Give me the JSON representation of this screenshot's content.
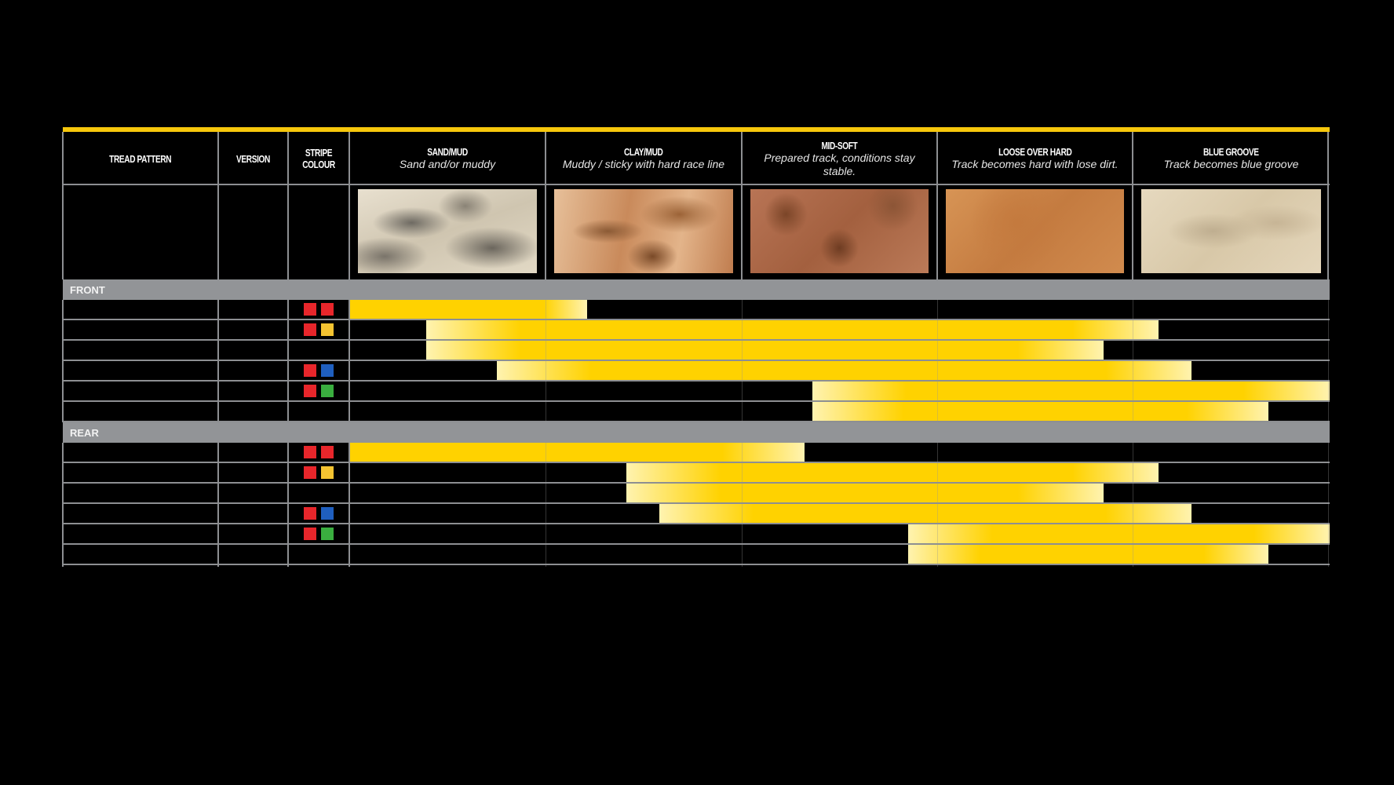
{
  "chart_data": {
    "type": "table",
    "columns": {
      "tread_pattern": "TREAD PATTERN",
      "version": "VERSION",
      "stripe_colour": "STRIPE COLOUR"
    },
    "conditions": [
      {
        "title": "SAND/MUD",
        "subtitle": "Sand and/or muddy",
        "texture": "sand"
      },
      {
        "title": "CLAY/MUD",
        "subtitle": "Muddy / sticky with hard race line",
        "texture": "clay"
      },
      {
        "title": "MID-SOFT",
        "subtitle": "Prepared track, conditions stay stable.",
        "texture": "midsoft"
      },
      {
        "title": "LOOSE OVER HARD",
        "subtitle": "Track becomes hard with lose dirt.",
        "texture": "loose"
      },
      {
        "title": "BLUE GROOVE",
        "subtitle": "Track becomes blue groove",
        "texture": "blue"
      }
    ],
    "range_units": "condition columns (0 = start of SAND/MUD, 5 = end of BLUE GROOVE)",
    "sections": [
      {
        "label": "FRONT",
        "rows": [
          {
            "stripe": [
              "red",
              "red"
            ],
            "start": 0,
            "end": 1.21
          },
          {
            "stripe": [
              "red",
              "yellow"
            ],
            "start": 0.39,
            "end": 4.13
          },
          {
            "stripe": [],
            "start": 0.39,
            "end": 3.85
          },
          {
            "stripe": [
              "red",
              "blue"
            ],
            "start": 0.75,
            "end": 4.3
          },
          {
            "stripe": [
              "red",
              "green"
            ],
            "start": 2.36,
            "end": 5.0
          },
          {
            "stripe": [],
            "start": 2.36,
            "end": 4.69
          }
        ]
      },
      {
        "label": "REAR",
        "rows": [
          {
            "stripe": [
              "red",
              "red"
            ],
            "start": 0,
            "end": 2.32
          },
          {
            "stripe": [
              "red",
              "yellow"
            ],
            "start": 1.41,
            "end": 4.13
          },
          {
            "stripe": [],
            "start": 1.41,
            "end": 3.85
          },
          {
            "stripe": [
              "red",
              "blue"
            ],
            "start": 1.58,
            "end": 4.3
          },
          {
            "stripe": [
              "red",
              "green"
            ],
            "start": 2.85,
            "end": 5.0
          },
          {
            "stripe": [],
            "start": 2.85,
            "end": 4.69
          }
        ]
      }
    ],
    "colors": {
      "accent": "#f7c80c",
      "bar_core": "#ffd200",
      "bar_edge": "#fff3b0",
      "band": "#929497",
      "red": "#e8262b",
      "yellow": "#f5c431",
      "blue": "#1f5fbf",
      "green": "#3aae3f"
    }
  }
}
